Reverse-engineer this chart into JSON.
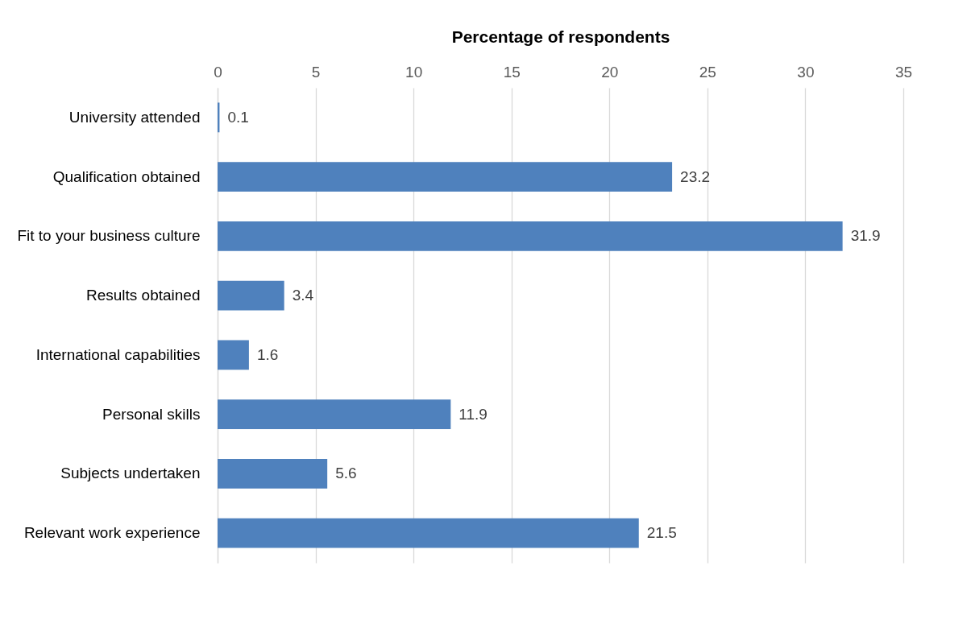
{
  "chart_data": {
    "type": "bar",
    "orientation": "horizontal",
    "xlabel": "Percentage of respondents",
    "categories": [
      "University attended",
      "Qualification obtained",
      "Fit to your business culture",
      "Results obtained",
      "International capabilities",
      "Personal skills",
      "Subjects undertaken",
      "Relevant work experience"
    ],
    "values": [
      0.1,
      23.2,
      31.9,
      3.4,
      1.6,
      11.9,
      5.6,
      21.5
    ],
    "color": "#4f81bd",
    "xlim": [
      0,
      35
    ],
    "xticks": [
      0,
      5,
      10,
      15,
      20,
      25,
      30,
      35
    ],
    "grid": "x",
    "data_labels": true
  }
}
